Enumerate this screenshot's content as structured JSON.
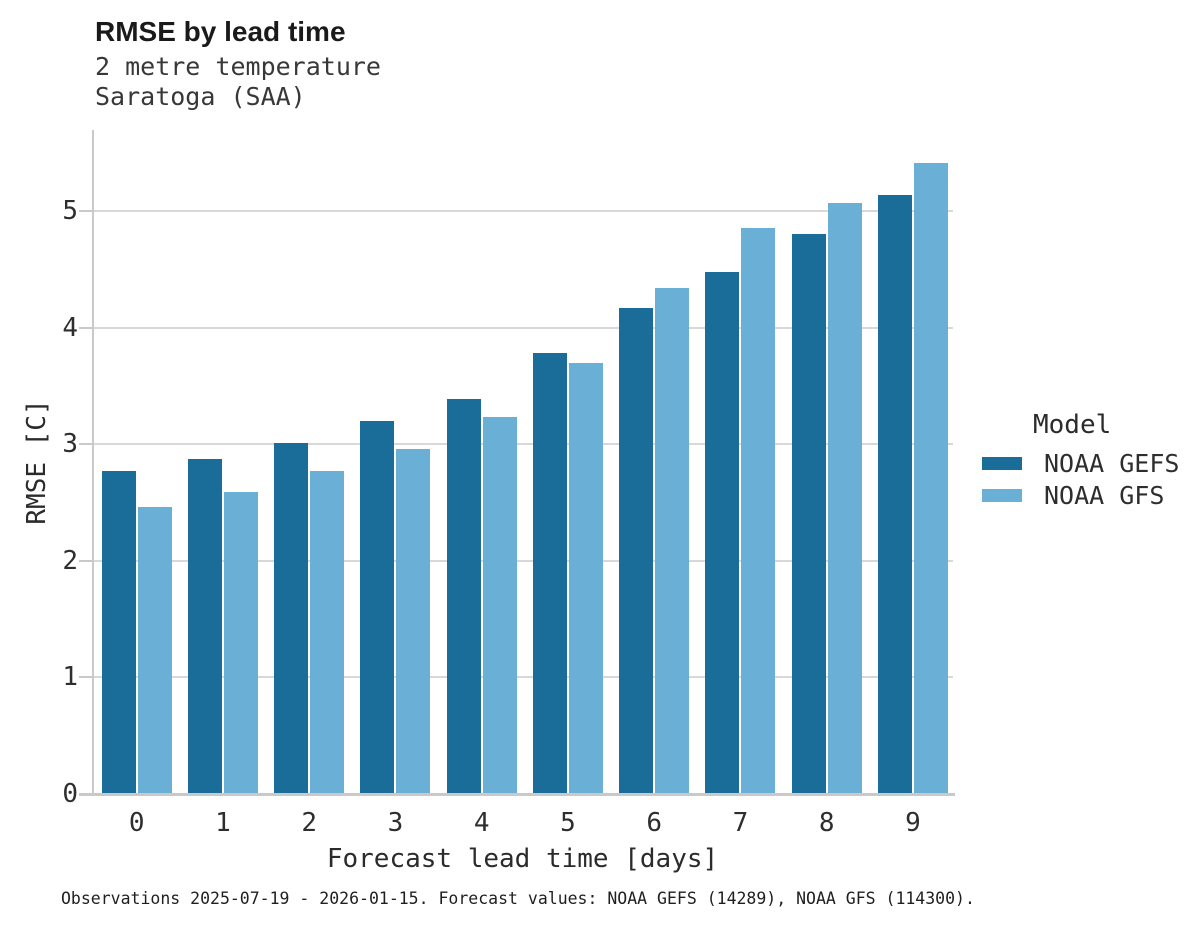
{
  "header": {
    "title": "RMSE by lead time",
    "subtitle_line1": "2 metre temperature",
    "subtitle_line2": "Saratoga (SAA)"
  },
  "chart_data": {
    "type": "bar",
    "title": "RMSE by lead time",
    "subtitle": [
      "2 metre temperature",
      "Saratoga (SAA)"
    ],
    "categories": [
      "0",
      "1",
      "2",
      "3",
      "4",
      "5",
      "6",
      "7",
      "8",
      "9"
    ],
    "series": [
      {
        "name": "NOAA GEFS",
        "color": "#1b6d99",
        "values": [
          2.77,
          2.87,
          3.01,
          3.2,
          3.39,
          3.78,
          4.17,
          4.48,
          4.8,
          5.14
        ]
      },
      {
        "name": "NOAA GFS",
        "color": "#69afd6",
        "values": [
          2.46,
          2.59,
          2.77,
          2.96,
          3.23,
          3.7,
          4.34,
          4.85,
          5.07,
          5.41
        ]
      }
    ],
    "xlabel": "Forecast lead time [days]",
    "ylabel": "RMSE [C]",
    "ylim": [
      0,
      5.69
    ],
    "yticks": [
      0,
      1,
      2,
      3,
      4,
      5
    ],
    "grid": "horizontal",
    "legend_title": "Model",
    "legend_position": "right"
  },
  "legend": {
    "title": "Model"
  },
  "footer": {
    "caption": "Observations 2025-07-19 - 2026-01-15. Forecast values: NOAA GEFS (14289), NOAA GFS (114300)."
  },
  "colors": {
    "series_dark": "#1b6d99",
    "series_light": "#69afd6",
    "gridline": "#d8d8d8",
    "axis": "#c9c9c9",
    "text": "#2b2b2b"
  }
}
